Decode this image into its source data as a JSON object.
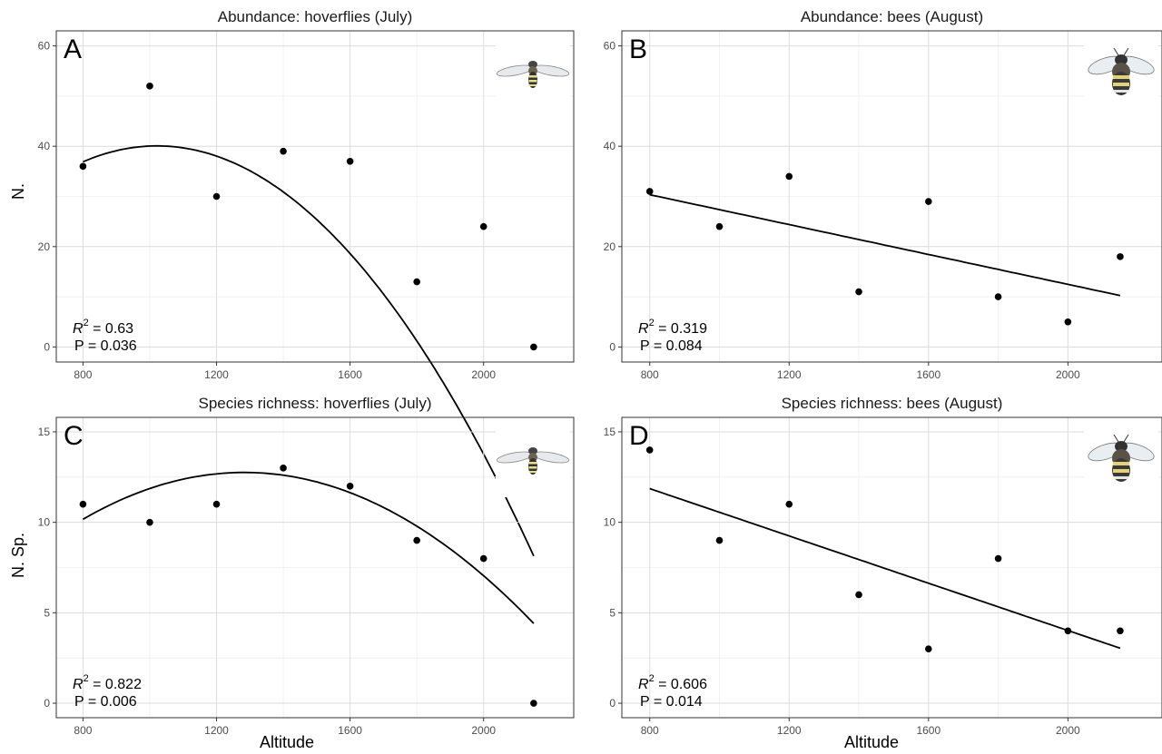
{
  "figure": {
    "x_axis_label": "Altitude",
    "y_axis_labels": {
      "top_row": "N.",
      "bottom_row": "N. Sp."
    }
  },
  "chart_data": [
    {
      "id": "A",
      "type": "scatter",
      "letter": "A",
      "title": "Abundance: hoverflies (July)",
      "icon": "hoverfly-icon",
      "x": [
        800,
        1000,
        1200,
        1400,
        1600,
        1800,
        2000,
        2150
      ],
      "y": [
        36,
        52,
        30,
        39,
        37,
        13,
        24,
        0
      ],
      "fit": {
        "model": "quadratic",
        "coefficients": [
          -27.03,
          0.1313,
          -6.423e-05
        ]
      },
      "stats": {
        "r2_label": "R",
        "r2_exponent": "2",
        "r2_value": " = 0.63",
        "p_text": "P = 0.036"
      },
      "xlim": [
        720,
        2270
      ],
      "ylim": [
        -3,
        63
      ],
      "xticks": [
        800,
        1200,
        1600,
        2000
      ],
      "yticks": [
        0,
        20,
        40,
        60
      ],
      "grid": true
    },
    {
      "id": "B",
      "type": "scatter",
      "letter": "B",
      "title": "Abundance: bees (August)",
      "icon": "bumblebee-icon",
      "x": [
        800,
        1000,
        1200,
        1400,
        1600,
        1800,
        2000,
        2150
      ],
      "y": [
        31,
        24,
        34,
        11,
        29,
        10,
        5,
        18
      ],
      "fit": {
        "model": "linear",
        "coefficients": [
          42.26,
          -0.01489
        ]
      },
      "stats": {
        "r2_label": "R",
        "r2_exponent": "2",
        "r2_value": " = 0.319",
        "p_text": "P = 0.084"
      },
      "xlim": [
        720,
        2270
      ],
      "ylim": [
        -3,
        63
      ],
      "xticks": [
        800,
        1200,
        1600,
        2000
      ],
      "yticks": [
        0,
        20,
        40,
        60
      ],
      "grid": true
    },
    {
      "id": "C",
      "type": "scatter",
      "letter": "C",
      "title": "Species richness: hoverflies (July)",
      "icon": "hoverfly-icon",
      "x": [
        800,
        1000,
        1200,
        1400,
        1600,
        1800,
        2000,
        2150
      ],
      "y": [
        11,
        10,
        11,
        13,
        12,
        9,
        8,
        0
      ],
      "fit": {
        "model": "quadratic",
        "coefficients": [
          -5.513,
          0.02848,
          -1.11e-05
        ]
      },
      "stats": {
        "r2_label": "R",
        "r2_exponent": "2",
        "r2_value": " = 0.822",
        "p_text": "P = 0.006"
      },
      "xlim": [
        720,
        2270
      ],
      "ylim": [
        -0.8,
        15.8
      ],
      "xticks": [
        800,
        1200,
        1600,
        2000
      ],
      "yticks": [
        0,
        5,
        10,
        15
      ],
      "grid": true
    },
    {
      "id": "D",
      "type": "scatter",
      "letter": "D",
      "title": "Species richness: bees (August)",
      "icon": "bumblebee-icon",
      "x": [
        800,
        1000,
        1200,
        1400,
        1600,
        1800,
        2000,
        2150
      ],
      "y": [
        14,
        9,
        11,
        6,
        3,
        8,
        4,
        4
      ],
      "fit": {
        "model": "linear",
        "coefficients": [
          17.09,
          -0.006535
        ]
      },
      "stats": {
        "r2_label": "R",
        "r2_exponent": "2",
        "r2_value": " = 0.606",
        "p_text": "P = 0.014"
      },
      "xlim": [
        720,
        2270
      ],
      "ylim": [
        -0.8,
        15.8
      ],
      "xticks": [
        800,
        1200,
        1600,
        2000
      ],
      "yticks": [
        0,
        5,
        10,
        15
      ],
      "grid": true
    }
  ]
}
